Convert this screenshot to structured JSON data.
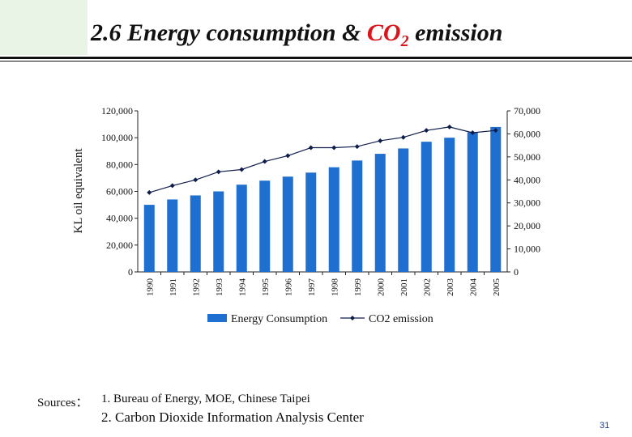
{
  "slide": {
    "title_prefix": "2.6 Energy consumption & ",
    "title_co2": "CO",
    "title_co2_sub": "2",
    "title_suffix": " emission",
    "sources_label": "Sources：",
    "sources": [
      "1. Bureau of Energy, MOE, Chinese Taipei",
      "2. Carbon Dioxide Information Analysis Center"
    ],
    "page_number": "31",
    "colors": {
      "bar": "#1f6fd1",
      "line": "#0f1d4a",
      "title_accent": "#d8161b",
      "corner_band": "#e9f3e6"
    }
  },
  "chart_data": {
    "type": "bar",
    "categories": [
      "1990",
      "1991",
      "1992",
      "1993",
      "1994",
      "1995",
      "1996",
      "1997",
      "1998",
      "1999",
      "2000",
      "2001",
      "2002",
      "2003",
      "2004",
      "2005"
    ],
    "ylabel": "KL oil equivalent",
    "ylim": [
      0,
      120000
    ],
    "y2lim": [
      0,
      70000
    ],
    "yticks": [
      "0",
      "20,000",
      "40,000",
      "60,000",
      "80,000",
      "100,000",
      "120,000"
    ],
    "y2ticks": [
      "0",
      "10,000",
      "20,000",
      "30,000",
      "40,000",
      "50,000",
      "60,000",
      "70,000"
    ],
    "legend_position": "bottom",
    "grid": false,
    "series": [
      {
        "name": "Energy  Consumption",
        "type": "bar",
        "axis": "left",
        "values": [
          50000,
          54000,
          57000,
          60000,
          65000,
          68000,
          71000,
          74000,
          78000,
          83000,
          88000,
          92000,
          97000,
          100000,
          104000,
          108000
        ]
      },
      {
        "name": "CO2 emission",
        "type": "line",
        "axis": "right",
        "values": [
          34500,
          37500,
          40000,
          43500,
          44500,
          48000,
          50500,
          54000,
          54000,
          54500,
          57000,
          58500,
          61500,
          63000,
          60500,
          61500
        ]
      }
    ]
  }
}
